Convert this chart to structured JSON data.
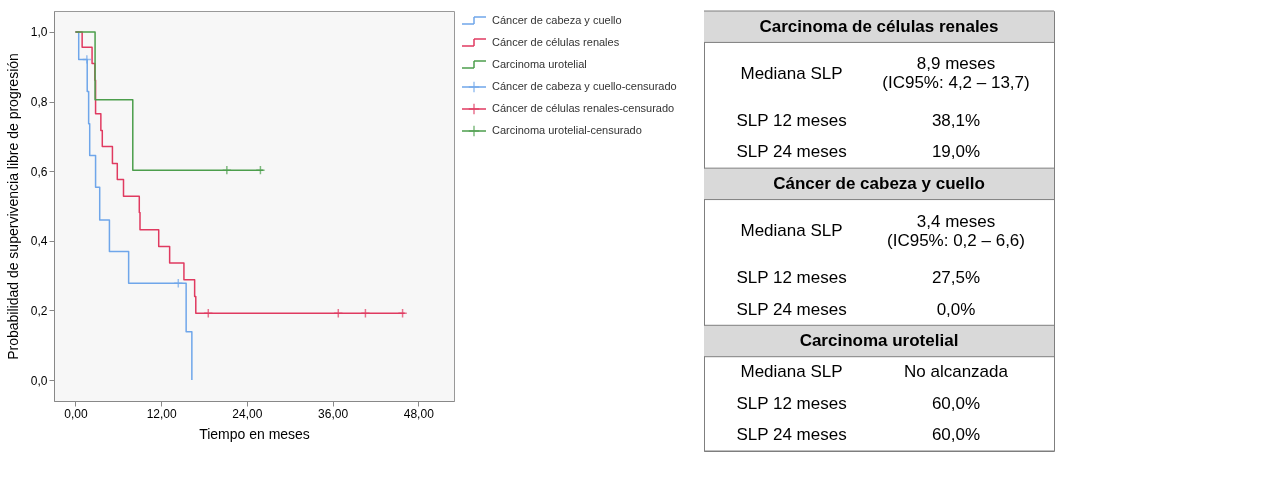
{
  "chart_data": [
    {
      "type": "step",
      "xlabel": "Tiempo en meses",
      "ylabel": "Probabilidad de supervivencia libre de progresión",
      "xlim": [
        -3,
        53
      ],
      "ylim": [
        -0.06,
        1.06
      ],
      "xticks": [
        {
          "value": 0,
          "label": "0,00"
        },
        {
          "value": 12,
          "label": "12,00"
        },
        {
          "value": 24,
          "label": "24,00"
        },
        {
          "value": 36,
          "label": "36,00"
        },
        {
          "value": 48,
          "label": "48,00"
        }
      ],
      "yticks": [
        {
          "value": 0,
          "label": "0,0"
        },
        {
          "value": 0.2,
          "label": "0,2"
        },
        {
          "value": 0.4,
          "label": "0,4"
        },
        {
          "value": 0.6,
          "label": "0,6"
        },
        {
          "value": 0.8,
          "label": "0,8"
        },
        {
          "value": 1,
          "label": "1,0"
        }
      ],
      "grid": false,
      "legend": "right",
      "series": [
        {
          "name": "Cáncer de cabeza y cuello",
          "type": "step",
          "color": "#6fa6ea",
          "x": [
            0,
            0.46,
            1.65,
            1.85,
            2.0,
            2.82,
            3.4,
            4.76,
            7.45,
            15.5,
            16.3
          ],
          "values": [
            1,
            0.921,
            0.829,
            0.736,
            0.645,
            0.554,
            0.46,
            0.369,
            0.278,
            0.139,
            0
          ]
        },
        {
          "name": "Cáncer de células renales",
          "type": "step",
          "color": "#e03a60",
          "x": [
            0,
            0.94,
            2.33,
            2.72,
            2.82,
            3.56,
            3.76,
            5.18,
            5.86,
            6.73,
            8.94,
            9.04,
            11.66,
            13.19,
            15.19,
            16.69,
            16.85,
            46.1
          ],
          "values": [
            1,
            0.956,
            0.909,
            0.861,
            0.765,
            0.717,
            0.671,
            0.622,
            0.576,
            0.528,
            0.481,
            0.432,
            0.384,
            0.336,
            0.288,
            0.24,
            0.192,
            0.192
          ]
        },
        {
          "name": "Carcinoma urotelial",
          "type": "step",
          "color": "#4c9e4c",
          "x": [
            0,
            2.75,
            8.03,
            26.3
          ],
          "values": [
            1,
            0.805,
            0.603,
            0.603
          ]
        },
        {
          "name": "Cáncer de cabeza y cuello-censurado",
          "type": "scatter",
          "marker": "cross",
          "color": "#6fa6ea",
          "x": [
            1.6,
            14.4
          ],
          "values": [
            0.921,
            0.278
          ]
        },
        {
          "name": "Cáncer de células renales-censurado",
          "type": "scatter",
          "marker": "cross",
          "color": "#e03a60",
          "x": [
            18.6,
            36.8,
            40.6,
            45.8
          ],
          "values": [
            0.192,
            0.192,
            0.192,
            0.192
          ]
        },
        {
          "name": "Carcinoma urotelial-censurado",
          "type": "scatter",
          "marker": "cross",
          "color": "#4c9e4c",
          "x": [
            21.2,
            25.9
          ],
          "values": [
            0.603,
            0.603
          ]
        }
      ]
    },
    {
      "type": "other",
      "annotations": [
        "Carcinoma de células renales",
        "Mediana SLP",
        "8,9 meses\n(IC95%: 4,2 – 13,7)",
        "SLP 12 meses",
        "38,1%",
        "SLP 24 meses",
        "19,0%",
        "Cáncer de cabeza y cuello",
        "Mediana SLP",
        "3,4 meses\n(IC95%: 0,2 – 6,6)",
        "SLP 12 meses",
        "27,5%",
        "SLP 24 meses",
        "0,0%",
        "Carcinoma urotelial",
        "Mediana SLP",
        "No alcanzada",
        "SLP 12 meses",
        "60,0%",
        "SLP 24 meses",
        "60,0%"
      ]
    }
  ]
}
